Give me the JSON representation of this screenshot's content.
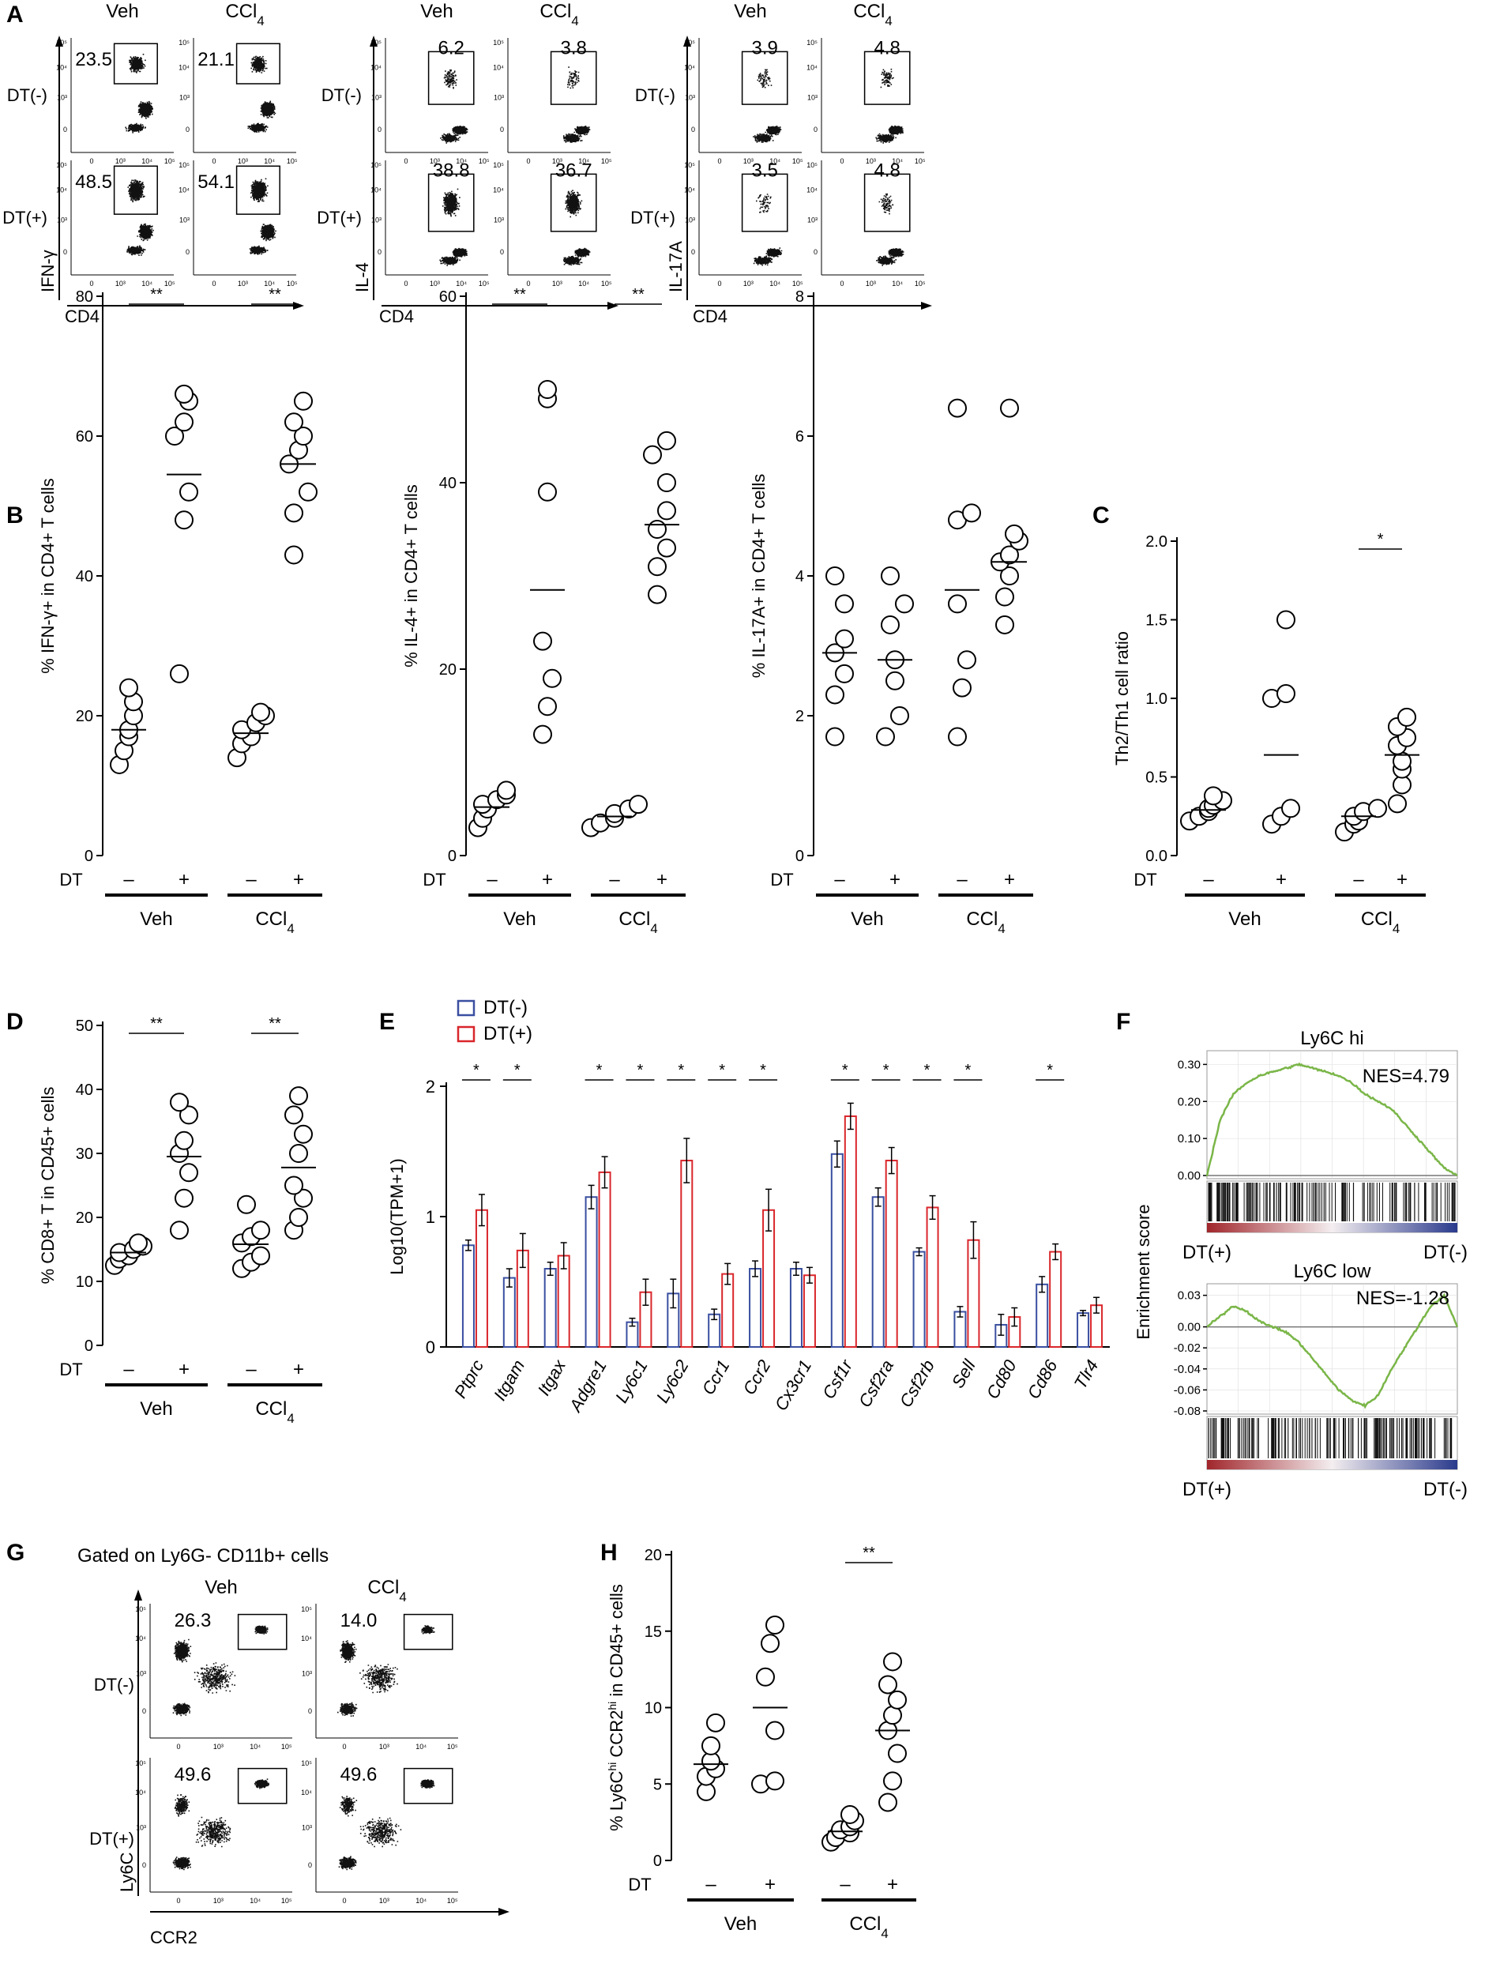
{
  "panel_letters": [
    "A",
    "B",
    "C",
    "D",
    "E",
    "F",
    "G",
    "H"
  ],
  "panelA": {
    "col_labels": [
      "Veh",
      "CCl4"
    ],
    "row_labels": [
      "DT(-)",
      "DT(+)"
    ],
    "x_axis_label": "CD4",
    "blocks": [
      {
        "y_label": "IFN-γ",
        "values": [
          "23.5",
          "21.1",
          "48.5",
          "54.1"
        ]
      },
      {
        "y_label": "IL-4",
        "values": [
          "6.2",
          "3.8",
          "38.8",
          "36.7"
        ]
      },
      {
        "y_label": "IL-17A",
        "values": [
          "3.9",
          "4.8",
          "3.5",
          "4.8"
        ]
      }
    ]
  },
  "panelG": {
    "title": "Gated on Ly6G- CD11b+ cells",
    "col_labels": [
      "Veh",
      "CCl4"
    ],
    "row_labels": [
      "DT(-)",
      "DT(+)"
    ],
    "x_axis_label": "CCR2",
    "y_axis_label": "Ly6C",
    "values": [
      "26.3",
      "14.0",
      "49.6",
      "49.6"
    ]
  },
  "flow_ticks": [
    "0",
    "10³",
    "10⁴",
    "10⁵"
  ],
  "dt_label": "DT",
  "dt_signs": [
    "–",
    "+"
  ],
  "group_labels": [
    "Veh",
    "CCl4"
  ],
  "sig_two": "**",
  "sig_one": "*",
  "chart_data": [
    {
      "id": "B1",
      "type": "scatter",
      "ylabel": "% IFN-γ+ in CD4+ T cells",
      "ylim": [
        0,
        80
      ],
      "yticks": [
        0,
        20,
        40,
        60,
        80
      ],
      "groups": [
        {
          "dt": "–",
          "veh": "Veh",
          "values": [
            13,
            15,
            17,
            18,
            20,
            22,
            24
          ],
          "mean": 18
        },
        {
          "dt": "+",
          "veh": "Veh",
          "values": [
            26,
            48,
            52,
            60,
            62,
            65,
            66
          ],
          "mean": 54.5
        },
        {
          "dt": "–",
          "veh": "CCl4",
          "values": [
            14,
            16,
            17,
            18,
            19,
            20,
            20.5
          ],
          "mean": 17.5
        },
        {
          "dt": "+",
          "veh": "CCl4",
          "values": [
            43,
            49,
            52,
            56,
            58,
            60,
            62,
            65
          ],
          "mean": 56
        }
      ],
      "significance": [
        {
          "groups": [
            0,
            1
          ],
          "label": "**"
        },
        {
          "groups": [
            2,
            3
          ],
          "label": "**"
        }
      ]
    },
    {
      "id": "B2",
      "type": "scatter",
      "ylabel": "% IL-4+ in CD4+ T cells",
      "ylim": [
        0,
        60
      ],
      "yticks": [
        0,
        20,
        40,
        60
      ],
      "groups": [
        {
          "dt": "–",
          "veh": "Veh",
          "values": [
            3,
            4,
            5,
            5.5,
            6,
            6.5,
            7
          ],
          "mean": 5.2
        },
        {
          "dt": "+",
          "veh": "Veh",
          "values": [
            13,
            16,
            19,
            23,
            39,
            49,
            50
          ],
          "mean": 28.5
        },
        {
          "dt": "–",
          "veh": "CCl4",
          "values": [
            3,
            3.5,
            4,
            4.5,
            5,
            5.5
          ],
          "mean": 4.2
        },
        {
          "dt": "+",
          "veh": "CCl4",
          "values": [
            28,
            31,
            33,
            35,
            37,
            40,
            43,
            44.5
          ],
          "mean": 35.5
        }
      ],
      "significance": [
        {
          "groups": [
            0,
            1
          ],
          "label": "**"
        },
        {
          "groups": [
            2,
            3
          ],
          "label": "**"
        }
      ]
    },
    {
      "id": "B3",
      "type": "scatter",
      "ylabel": "% IL-17A+ in CD4+ T cells",
      "ylim": [
        0,
        8
      ],
      "yticks": [
        0,
        2,
        4,
        6,
        8
      ],
      "groups": [
        {
          "dt": "–",
          "veh": "Veh",
          "values": [
            1.7,
            2.3,
            2.6,
            2.9,
            3.1,
            3.6,
            4.0
          ],
          "mean": 2.9
        },
        {
          "dt": "+",
          "veh": "Veh",
          "values": [
            1.7,
            2.0,
            2.5,
            2.8,
            3.3,
            3.6,
            4.0
          ],
          "mean": 2.8
        },
        {
          "dt": "–",
          "veh": "CCl4",
          "values": [
            1.7,
            2.4,
            2.8,
            3.6,
            4.8,
            4.9,
            6.4
          ],
          "mean": 3.8
        },
        {
          "dt": "+",
          "veh": "CCl4",
          "values": [
            3.3,
            3.7,
            4.0,
            4.2,
            4.3,
            4.5,
            4.6,
            6.4
          ],
          "mean": 4.2
        }
      ],
      "significance": []
    },
    {
      "id": "C",
      "type": "scatter",
      "ylabel": "Th2/Th1 cell ratio",
      "ylim": [
        0,
        2.0
      ],
      "yticks": [
        "0.0",
        "0.5",
        "1.0",
        "1.5",
        "2.0"
      ],
      "groups": [
        {
          "dt": "–",
          "veh": "Veh",
          "values": [
            0.22,
            0.25,
            0.28,
            0.3,
            0.32,
            0.35,
            0.38
          ],
          "mean": 0.29
        },
        {
          "dt": "+",
          "veh": "Veh",
          "values": [
            0.2,
            0.25,
            0.3,
            1.0,
            1.03,
            1.5
          ],
          "mean": 0.64
        },
        {
          "dt": "–",
          "veh": "CCl4",
          "values": [
            0.15,
            0.2,
            0.22,
            0.25,
            0.28,
            0.3
          ],
          "mean": 0.25
        },
        {
          "dt": "+",
          "veh": "CCl4",
          "values": [
            0.33,
            0.45,
            0.55,
            0.6,
            0.7,
            0.75,
            0.82,
            0.88
          ],
          "mean": 0.64
        }
      ],
      "significance": [
        {
          "groups": [
            2,
            3
          ],
          "label": "*"
        }
      ]
    },
    {
      "id": "D",
      "type": "scatter",
      "ylabel": "% CD8+ T in CD45+ cells",
      "ylim": [
        0,
        50
      ],
      "yticks": [
        0,
        10,
        20,
        30,
        40,
        50
      ],
      "groups": [
        {
          "dt": "–",
          "veh": "Veh",
          "values": [
            12.5,
            13.5,
            14,
            14.5,
            15,
            15.5,
            16
          ],
          "mean": 14.5
        },
        {
          "dt": "+",
          "veh": "Veh",
          "values": [
            18,
            23,
            27,
            30,
            32,
            36,
            38
          ],
          "mean": 29.5
        },
        {
          "dt": "–",
          "veh": "CCl4",
          "values": [
            12,
            13,
            14,
            16,
            17,
            18,
            22
          ],
          "mean": 15.8
        },
        {
          "dt": "+",
          "veh": "CCl4",
          "values": [
            18,
            20,
            23,
            25,
            30,
            33,
            36,
            39
          ],
          "mean": 27.8
        }
      ],
      "significance": [
        {
          "groups": [
            0,
            1
          ],
          "label": "**"
        },
        {
          "groups": [
            2,
            3
          ],
          "label": "**"
        }
      ]
    },
    {
      "id": "H",
      "type": "scatter",
      "ylabel": "% Ly6C",
      "ylabel_sup": "hi",
      "ylabel_mid": " CCR2",
      "ylabel_sup2": "hi",
      "ylabel_end": " in CD45+ cells",
      "ylim": [
        0,
        20
      ],
      "yticks": [
        0,
        5,
        10,
        15,
        20
      ],
      "groups": [
        {
          "dt": "–",
          "veh": "Veh",
          "values": [
            4.5,
            5.5,
            6,
            6.5,
            7.5,
            9
          ],
          "mean": 6.3
        },
        {
          "dt": "+",
          "veh": "Veh",
          "values": [
            5,
            5.2,
            8.5,
            12,
            14.2,
            15.4
          ],
          "mean": 10
        },
        {
          "dt": "–",
          "veh": "CCl4",
          "values": [
            1.2,
            1.5,
            1.8,
            2.0,
            2.2,
            2.6,
            3.0
          ],
          "mean": 1.9
        },
        {
          "dt": "+",
          "veh": "CCl4",
          "values": [
            3.8,
            5.2,
            7,
            8.5,
            9.5,
            10.5,
            11.5,
            13
          ],
          "mean": 8.5
        }
      ],
      "significance": [
        {
          "groups": [
            2,
            3
          ],
          "label": "**"
        }
      ]
    },
    {
      "id": "E",
      "type": "bar",
      "ylabel": "Log10(TPM+1)",
      "ylim": [
        0,
        2
      ],
      "yticks": [
        "0",
        "1",
        "2"
      ],
      "legend": [
        "DT(-)",
        "DT(+)"
      ],
      "colors": [
        "#3a4fa0",
        "#d9262b"
      ],
      "categories": [
        "Ptprc",
        "Itgam",
        "Itgax",
        "Adgre1",
        "Ly6c1",
        "Ly6c2",
        "Ccr1",
        "Ccr2",
        "Cx3cr1",
        "Csf1r",
        "Csf2ra",
        "Csf2rb",
        "Sell",
        "Cd80",
        "Cd86",
        "Tlr4"
      ],
      "series": [
        {
          "name": "DT(-)",
          "values": [
            0.78,
            0.53,
            0.6,
            1.15,
            0.19,
            0.41,
            0.25,
            0.6,
            0.6,
            1.48,
            1.15,
            0.73,
            0.27,
            0.17,
            0.48,
            0.26
          ],
          "errors": [
            0.04,
            0.07,
            0.05,
            0.09,
            0.03,
            0.11,
            0.04,
            0.06,
            0.05,
            0.1,
            0.07,
            0.03,
            0.04,
            0.08,
            0.06,
            0.02
          ]
        },
        {
          "name": "DT(+)",
          "values": [
            1.05,
            0.74,
            0.7,
            1.34,
            0.42,
            1.43,
            0.56,
            1.05,
            0.55,
            1.77,
            1.43,
            1.07,
            0.82,
            0.23,
            0.73,
            0.32
          ],
          "errors": [
            0.12,
            0.13,
            0.1,
            0.12,
            0.1,
            0.17,
            0.08,
            0.16,
            0.06,
            0.1,
            0.1,
            0.09,
            0.14,
            0.07,
            0.06,
            0.06
          ]
        }
      ],
      "significance": [
        1,
        1,
        0,
        1,
        1,
        1,
        1,
        1,
        0,
        1,
        1,
        1,
        1,
        0,
        1,
        0
      ],
      "sig_label": "*"
    },
    {
      "id": "F",
      "type": "line",
      "ylabel": "Enrichment score",
      "panels": [
        {
          "title": "Ly6C hi",
          "nes": "NES=4.79",
          "yticks": [
            "0.30",
            "0.20",
            "0.10",
            "0.00"
          ],
          "ylim": [
            0,
            0.32
          ],
          "points": [
            0,
            0.15,
            0.22,
            0.25,
            0.27,
            0.28,
            0.29,
            0.3,
            0.29,
            0.28,
            0.27,
            0.25,
            0.22,
            0.2,
            0.18,
            0.14,
            0.1,
            0.06,
            0.02,
            0
          ]
        },
        {
          "title": "Ly6C low",
          "nes": "NES=-1.28",
          "yticks": [
            "0.03",
            "0.00",
            "-0.02",
            "-0.04",
            "-0.06",
            "-0.08"
          ],
          "ylim": [
            -0.08,
            0.035
          ],
          "points": [
            0,
            0.01,
            0.02,
            0.015,
            0.005,
            0,
            -0.005,
            -0.015,
            -0.03,
            -0.045,
            -0.06,
            -0.07,
            -0.075,
            -0.065,
            -0.04,
            -0.02,
            0,
            0.02,
            0.03,
            0
          ]
        }
      ],
      "x_left": "DT(+)",
      "x_right": "DT(-)",
      "color": "#7ab648"
    }
  ]
}
